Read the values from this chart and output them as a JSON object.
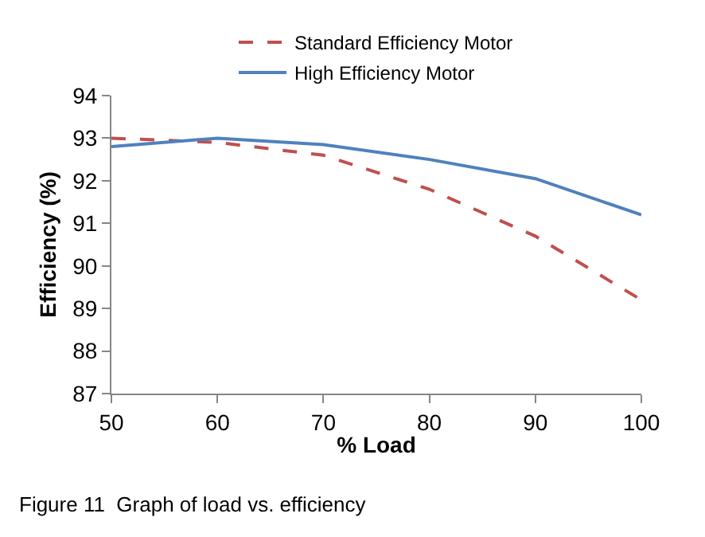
{
  "chart_data": {
    "type": "line",
    "xlabel": "% Load",
    "ylabel": "Efficiency (%)",
    "x": [
      50,
      60,
      70,
      80,
      90,
      100
    ],
    "series": [
      {
        "name": "Standard Efficiency Motor",
        "color": "#c0504d",
        "line_style": "dashed",
        "values": [
          93.0,
          92.9,
          92.6,
          91.8,
          90.7,
          89.2
        ]
      },
      {
        "name": "High Efficiency Motor",
        "color": "#4f81bd",
        "line_style": "solid",
        "values": [
          92.8,
          93.0,
          92.85,
          92.5,
          92.05,
          91.2
        ]
      }
    ],
    "xlim": [
      50,
      100
    ],
    "xticks": [
      50,
      60,
      70,
      80,
      90,
      100
    ],
    "ylim": [
      87,
      94
    ],
    "yticks": [
      87,
      88,
      89,
      90,
      91,
      92,
      93,
      94
    ],
    "legend": "top",
    "marker": "none",
    "annotations": [
      "Figure 11  Graph of load vs. efficiency"
    ]
  }
}
